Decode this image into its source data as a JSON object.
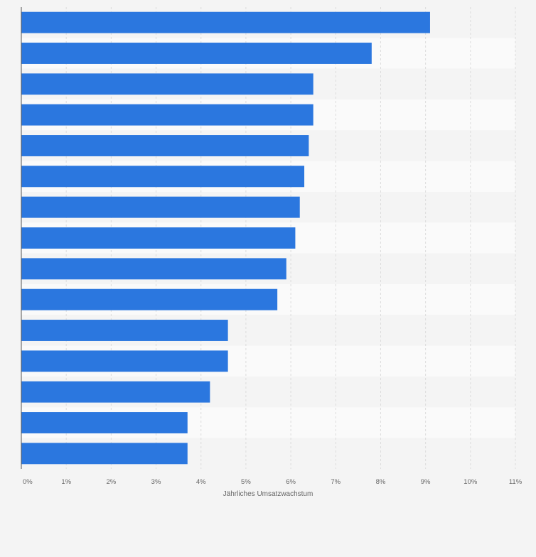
{
  "chart_data": {
    "type": "bar",
    "orientation": "horizontal",
    "categories": [
      "",
      "",
      "",
      "",
      "",
      "",
      "",
      "",
      "",
      "",
      "",
      "",
      "",
      "",
      ""
    ],
    "values": [
      9.1,
      7.8,
      6.5,
      6.5,
      6.4,
      6.3,
      6.2,
      6.1,
      5.9,
      5.7,
      4.6,
      4.6,
      4.2,
      3.7,
      3.7
    ],
    "xlabel": "Jährliches Umsatzwachstum",
    "ylabel": "",
    "xlim": [
      0,
      11
    ],
    "xticks": [
      "0%",
      "1%",
      "2%",
      "3%",
      "4%",
      "5%",
      "6%",
      "7%",
      "8%",
      "9%",
      "10%",
      "11%"
    ],
    "bar_color": "#2b77df",
    "grid": true,
    "legend": "none"
  }
}
